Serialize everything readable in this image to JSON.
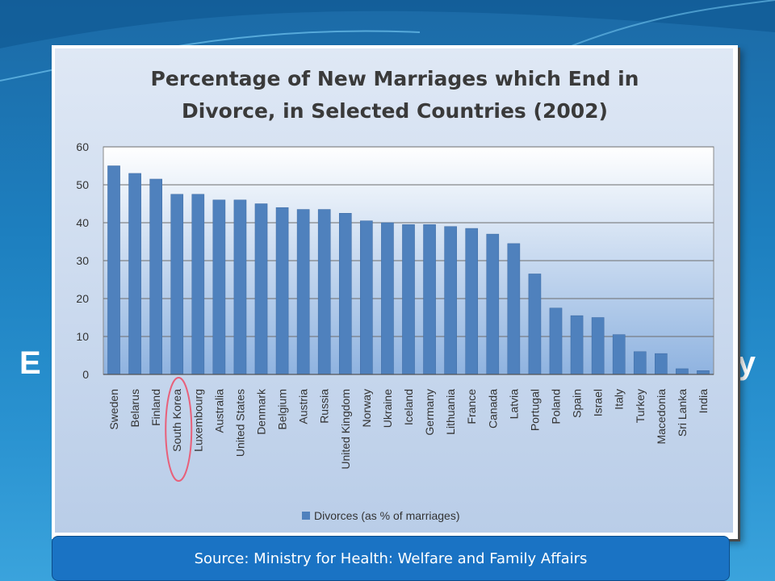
{
  "slide": {
    "title_fragment_left": "E",
    "title_fragment_right": "y",
    "source_text": "Source: Ministry for Health: Welfare and Family Affairs"
  },
  "colors": {
    "bar": "#4f81bd",
    "plot_bg_top": "#ffffff",
    "plot_bg_bottom": "#8fb3e0",
    "highlight_ellipse": "#e8607a"
  },
  "chart_data": {
    "type": "bar",
    "title": "Percentage of New Marriages which End in Divorce, in Selected Countries (2002)",
    "title_lines": [
      "Percentage of New Marriages which End in",
      "Divorce, in Selected Countries (2002)"
    ],
    "categories": [
      "Sweden",
      "Belarus",
      "Finland",
      "South Korea",
      "Luxembourg",
      "Australia",
      "United States",
      "Denmark",
      "Belgium",
      "Austria",
      "Russia",
      "United Kingdom",
      "Norway",
      "Ukraine",
      "Iceland",
      "Germany",
      "Lithuania",
      "France",
      "Canada",
      "Latvia",
      "Portugal",
      "Poland",
      "Spain",
      "Israel",
      "Italy",
      "Turkey",
      "Macedonia",
      "Sri Lanka",
      "India"
    ],
    "series": [
      {
        "name": "Divorces (as % of marriages)",
        "values": [
          55,
          53,
          51.5,
          47.5,
          47.5,
          46,
          46,
          45,
          44,
          43.5,
          43.5,
          42.5,
          40.5,
          40,
          39.5,
          39.5,
          39,
          38.5,
          37,
          34.5,
          26.5,
          17.5,
          15.5,
          15,
          10.5,
          6,
          5.5,
          1.5,
          1
        ]
      }
    ],
    "ylim": [
      0,
      60
    ],
    "yticks": [
      0,
      10,
      20,
      30,
      40,
      50,
      60
    ],
    "grid": true,
    "legend": "bottom",
    "highlight_category": "South Korea"
  }
}
